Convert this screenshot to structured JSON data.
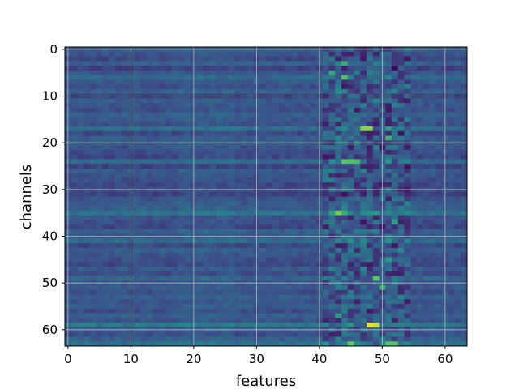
{
  "chart_data": {
    "type": "heatmap",
    "title": "",
    "xlabel": "features",
    "ylabel": "channels",
    "xlim": [
      -0.5,
      63.5
    ],
    "ylim": [
      63.5,
      -0.5
    ],
    "x_ticks": [
      0,
      10,
      20,
      30,
      40,
      50,
      60
    ],
    "y_ticks": [
      0,
      10,
      20,
      30,
      40,
      50,
      60
    ],
    "n_rows": 64,
    "n_cols": 64,
    "colormap": "viridis",
    "value_range": [
      0,
      1
    ],
    "grid": true,
    "row_base": [
      0.3,
      0.26,
      0.22,
      0.3,
      0.2,
      0.27,
      0.33,
      0.28,
      0.24,
      0.3,
      0.22,
      0.28,
      0.26,
      0.24,
      0.3,
      0.27,
      0.25,
      0.36,
      0.22,
      0.28,
      0.3,
      0.26,
      0.24,
      0.22,
      0.34,
      0.2,
      0.28,
      0.26,
      0.24,
      0.22,
      0.24,
      0.2,
      0.26,
      0.28,
      0.3,
      0.38,
      0.26,
      0.24,
      0.22,
      0.3,
      0.28,
      0.34,
      0.22,
      0.3,
      0.26,
      0.24,
      0.22,
      0.28,
      0.24,
      0.32,
      0.26,
      0.28,
      0.24,
      0.3,
      0.26,
      0.28,
      0.24,
      0.3,
      0.26,
      0.4,
      0.28,
      0.24,
      0.3,
      0.36
    ],
    "hotspots": [
      {
        "row": 3,
        "col": 44,
        "value": 0.62
      },
      {
        "row": 5,
        "col": 42,
        "value": 0.58
      },
      {
        "row": 6,
        "col": 44,
        "value": 0.7
      },
      {
        "row": 17,
        "col": 47,
        "value": 0.82
      },
      {
        "row": 17,
        "col": 48,
        "value": 0.82
      },
      {
        "row": 19,
        "col": 51,
        "value": 0.64
      },
      {
        "row": 24,
        "col": 44,
        "value": 0.72
      },
      {
        "row": 24,
        "col": 45,
        "value": 0.7
      },
      {
        "row": 24,
        "col": 46,
        "value": 0.68
      },
      {
        "row": 35,
        "col": 43,
        "value": 0.78
      },
      {
        "row": 35,
        "col": 44,
        "value": 0.62
      },
      {
        "row": 37,
        "col": 52,
        "value": 0.55
      },
      {
        "row": 45,
        "col": 51,
        "value": 0.55
      },
      {
        "row": 49,
        "col": 49,
        "value": 0.72
      },
      {
        "row": 51,
        "col": 50,
        "value": 0.62
      },
      {
        "row": 57,
        "col": 43,
        "value": 0.55
      },
      {
        "row": 59,
        "col": 48,
        "value": 0.96
      },
      {
        "row": 59,
        "col": 49,
        "value": 0.92
      },
      {
        "row": 63,
        "col": 45,
        "value": 0.74
      },
      {
        "row": 63,
        "col": 51,
        "value": 0.72
      },
      {
        "row": 63,
        "col": 52,
        "value": 0.72
      }
    ]
  }
}
